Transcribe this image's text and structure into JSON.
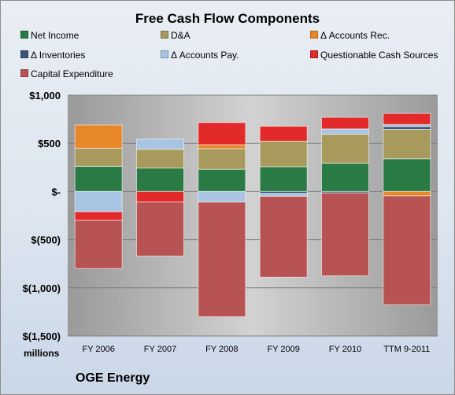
{
  "chart_data": {
    "type": "bar",
    "stacked": true,
    "title": "Free Cash Flow Components",
    "ylabel": "millions",
    "ylim": [
      -1500,
      1000
    ],
    "yticks": [
      {
        "value": 1000,
        "label": "$1,000"
      },
      {
        "value": 500,
        "label": "$500"
      },
      {
        "value": 0,
        "label": "$-"
      },
      {
        "value": -500,
        "label": "$(500)"
      },
      {
        "value": -1000,
        "label": "$(1,000)"
      },
      {
        "value": -1500,
        "label": "$(1,500)"
      }
    ],
    "categories": [
      "FY 2006",
      "FY 2007",
      "FY 2008",
      "FY 2009",
      "FY 2010",
      "TTM 9-2011"
    ],
    "grid": true,
    "legend_position": "top",
    "series": [
      {
        "name": "Net Income",
        "color": "#2a7a45",
        "values": [
          262,
          244,
          231,
          258,
          295,
          340
        ]
      },
      {
        "name": "D&A",
        "color": "#a79a5c",
        "values": [
          188,
          195,
          215,
          265,
          300,
          305
        ]
      },
      {
        "name": "Δ Accounts Rec.",
        "color": "#e8862a",
        "values": [
          240,
          0,
          40,
          0,
          0,
          -45
        ]
      },
      {
        "name": "Δ Inventories",
        "color": "#3a5576",
        "values": [
          0,
          0,
          0,
          -20,
          -15,
          30
        ]
      },
      {
        "name": "Δ Accounts Pay.",
        "color": "#a9c4e3",
        "values": [
          -210,
          105,
          -110,
          -30,
          55,
          20
        ]
      },
      {
        "name": "Questionable Cash Sources",
        "color": "#e32a2a",
        "values": [
          -90,
          -110,
          230,
          155,
          120,
          115
        ]
      },
      {
        "name": "Capital Expenditure",
        "color": "#b85353",
        "values": [
          -500,
          -560,
          -1190,
          -840,
          -860,
          -1130
        ]
      }
    ]
  },
  "footer": {
    "company": "OGE Energy"
  }
}
